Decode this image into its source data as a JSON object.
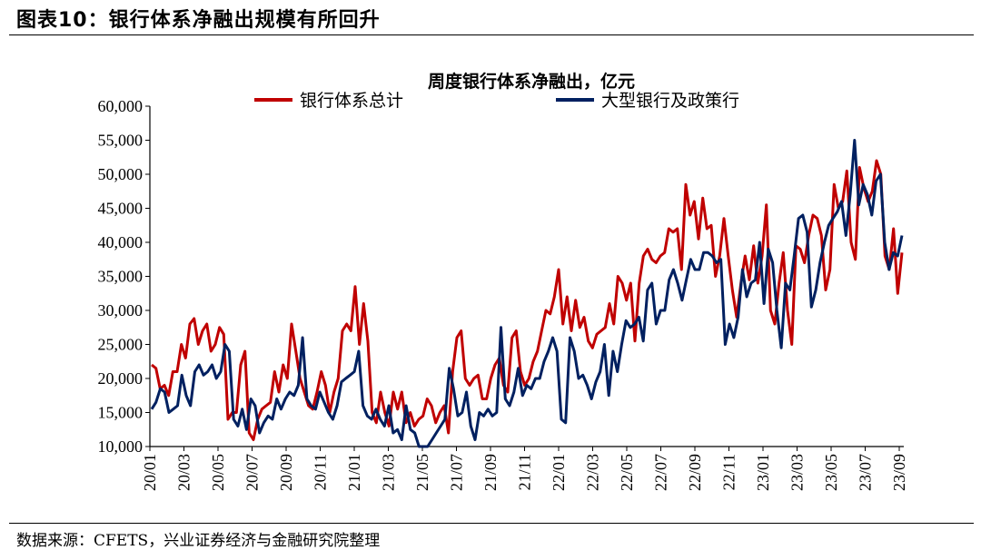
{
  "figure_title": "图表10：银行体系净融出规模有所回升",
  "source_note": "数据来源：CFETS，兴业证券经济与金融研究院整理",
  "chart_data": {
    "type": "line",
    "title": "周度银行体系净融出，亿元",
    "xlabel": "",
    "ylabel": "",
    "ylim": [
      10000,
      60000
    ],
    "yticks": [
      "10,000",
      "15,000",
      "20,000",
      "25,000",
      "30,000",
      "35,000",
      "40,000",
      "45,000",
      "50,000",
      "55,000",
      "60,000"
    ],
    "xticks": [
      "20/01",
      "20/03",
      "20/05",
      "20/07",
      "20/09",
      "20/11",
      "21/01",
      "21/03",
      "21/05",
      "21/07",
      "21/09",
      "21/11",
      "22/01",
      "22/03",
      "22/05",
      "22/07",
      "22/09",
      "22/11",
      "23/01",
      "23/03",
      "23/05",
      "23/07",
      "23/09"
    ],
    "x_start": "20/01",
    "x_end": "23/09",
    "grid": false,
    "legend_position": "top",
    "colors": {
      "red": "#c00000",
      "navy": "#002060"
    },
    "series": [
      {
        "name": "银行体系总计",
        "color": "#c00000",
        "values": [
          22000,
          21500,
          18500,
          19000,
          17500,
          21000,
          21000,
          25000,
          23000,
          28000,
          28800,
          25000,
          27000,
          28000,
          24000,
          25000,
          27500,
          26500,
          14000,
          15000,
          15000,
          22000,
          24000,
          12000,
          11000,
          14000,
          15500,
          16000,
          16500,
          21000,
          18000,
          22000,
          20000,
          28000,
          24000,
          20000,
          18000,
          16000,
          15500,
          18000,
          21000,
          19000,
          15000,
          18000,
          20000,
          27000,
          28000,
          27000,
          33500,
          25000,
          31000,
          25500,
          15000,
          13500,
          18000,
          15000,
          13000,
          18000,
          15500,
          18000,
          13500,
          15000,
          13000,
          14000,
          14500,
          17000,
          16000,
          13500,
          15000,
          16000,
          12000,
          21000,
          26000,
          27000,
          20000,
          19000,
          20000,
          20500,
          17000,
          17000,
          20000,
          22000,
          23000,
          19000,
          18000,
          26000,
          27000,
          21000,
          19000,
          20000,
          22500,
          24000,
          27000,
          30000,
          29500,
          32000,
          36000,
          28000,
          32000,
          27000,
          31500,
          27500,
          29000,
          25500,
          24500,
          26500,
          27000,
          27500,
          31000,
          28000,
          35000,
          34000,
          31500,
          34000,
          25500,
          34000,
          38000,
          39000,
          37500,
          37000,
          38000,
          38500,
          42000,
          41500,
          42000,
          36000,
          48500,
          44000,
          46000,
          40500,
          46500,
          42000,
          42500,
          35000,
          38000,
          43500,
          38000,
          33000,
          29000,
          34000,
          38000,
          34500,
          39500,
          34000,
          38000,
          45500,
          30000,
          28000,
          34000,
          38500,
          30000,
          25000,
          39500,
          39000,
          37000,
          41000,
          44000,
          43500,
          41000,
          33000,
          36000,
          48500,
          45000,
          46000,
          50500,
          40000,
          37500,
          51000,
          48000,
          46000,
          47500,
          52000,
          50000,
          38000,
          36000,
          42000,
          32500,
          38500
        ]
      },
      {
        "name": "大型银行及政策行",
        "color": "#002060",
        "values": [
          15500,
          16500,
          18500,
          18000,
          15000,
          15500,
          16000,
          20500,
          17500,
          16000,
          21000,
          22000,
          20500,
          21000,
          22000,
          20000,
          21000,
          25000,
          24000,
          14000,
          13000,
          15500,
          12500,
          17000,
          16000,
          12000,
          13500,
          14500,
          14000,
          17000,
          15500,
          17000,
          18000,
          17500,
          19000,
          26000,
          17000,
          16000,
          15500,
          18000,
          16500,
          15000,
          14000,
          16000,
          19500,
          20000,
          20500,
          21000,
          24000,
          16000,
          14500,
          14000,
          15500,
          14000,
          13000,
          16000,
          12000,
          12500,
          11000,
          16000,
          12500,
          12000,
          10000,
          10000,
          10000,
          11000,
          12000,
          13000,
          14000,
          21500,
          18500,
          14500,
          15000,
          18000,
          13000,
          11000,
          15000,
          14500,
          15500,
          14500,
          15000,
          27500,
          17000,
          16000,
          18000,
          21500,
          17500,
          19000,
          18500,
          20000,
          20000,
          22500,
          24000,
          26000,
          24000,
          14000,
          13500,
          26000,
          24000,
          20000,
          20500,
          19000,
          17000,
          19500,
          21000,
          25000,
          17500,
          24000,
          21000,
          25000,
          28500,
          27500,
          28000,
          29000,
          25500,
          33000,
          34000,
          28000,
          30000,
          30000,
          34500,
          36000,
          34000,
          31500,
          34500,
          37500,
          36000,
          36000,
          38500,
          38500,
          38000,
          37000,
          37500,
          25000,
          28000,
          26000,
          29000,
          36000,
          32000,
          34000,
          34500,
          40000,
          31000,
          39000,
          37000,
          30000,
          24500,
          34000,
          33000,
          38000,
          43500,
          44000,
          41500,
          30500,
          33000,
          37000,
          40000,
          42500,
          43500,
          44500,
          46000,
          41000,
          47000,
          55000,
          45500,
          48500,
          47000,
          44000,
          49000,
          50000,
          40000,
          36000,
          38500,
          38000,
          41000
        ]
      }
    ]
  }
}
